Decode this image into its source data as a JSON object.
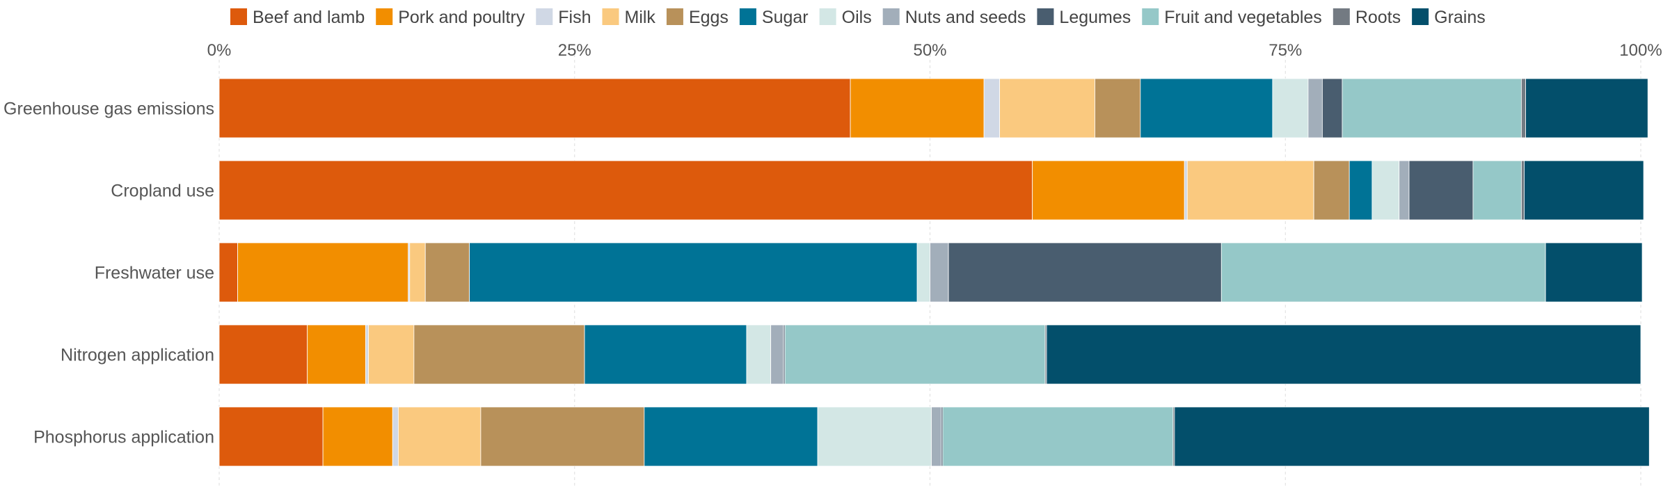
{
  "chart_data": {
    "type": "bar",
    "orientation": "horizontal",
    "stacked": true,
    "normalized": true,
    "categories": [
      "Greenhouse gas emissions",
      "Cropland use",
      "Freshwater use",
      "Nitrogen application",
      "Phosphorus application"
    ],
    "xlim": [
      0,
      100
    ],
    "x_ticks": [
      "0%",
      "25%",
      "50%",
      "75%",
      "100%"
    ],
    "grid": true,
    "legend_position": "top",
    "series": [
      {
        "name": "Beef and lamb",
        "color": "#dd5a0c",
        "values": [
          44.4,
          57.2,
          1.3,
          6.2,
          7.3
        ]
      },
      {
        "name": "Pork and poultry",
        "color": "#f28e00",
        "values": [
          9.4,
          10.7,
          12.0,
          4.1,
          4.9
        ]
      },
      {
        "name": "Fish",
        "color": "#d0d8e5",
        "values": [
          1.1,
          0.2,
          0.1,
          0.2,
          0.4
        ]
      },
      {
        "name": "Milk",
        "color": "#fac97f",
        "values": [
          6.7,
          8.9,
          1.1,
          3.2,
          5.8
        ]
      },
      {
        "name": "Eggs",
        "color": "#b8915a",
        "values": [
          3.2,
          2.5,
          3.1,
          12.0,
          11.5
        ]
      },
      {
        "name": "Sugar",
        "color": "#007396",
        "values": [
          9.3,
          1.6,
          31.5,
          11.4,
          12.2
        ]
      },
      {
        "name": "Oils",
        "color": "#d3e7e5",
        "values": [
          2.5,
          1.9,
          0.9,
          1.7,
          8.0
        ]
      },
      {
        "name": "Nuts and seeds",
        "color": "#a2aeba",
        "values": [
          1.0,
          0.7,
          1.3,
          0.9,
          0.7
        ]
      },
      {
        "name": "Legumes",
        "color": "#495d6f",
        "values": [
          1.4,
          4.5,
          19.2,
          0.1,
          0.1
        ]
      },
      {
        "name": "Fruit and vegetables",
        "color": "#95c8c8",
        "values": [
          12.6,
          3.4,
          22.8,
          18.3,
          16.2
        ]
      },
      {
        "name": "Roots",
        "color": "#737a82",
        "values": [
          0.3,
          0.2,
          0.0,
          0.1,
          0.1
        ]
      },
      {
        "name": "Grains",
        "color": "#034f6b",
        "values": [
          8.6,
          8.4,
          6.8,
          41.8,
          33.4
        ]
      }
    ]
  }
}
